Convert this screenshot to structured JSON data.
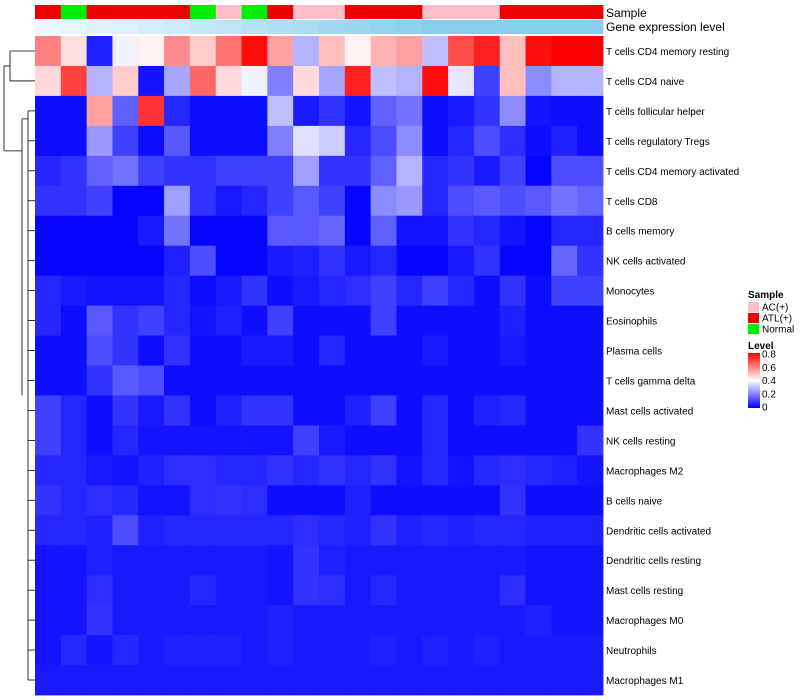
{
  "chart_data": {
    "type": "heatmap",
    "annotations": {
      "sample_label": "Sample",
      "gene_label": "Gene expression level",
      "sample_groups": [
        "ATL(+)",
        "Normal",
        "ATL(+)",
        "ATL(+)",
        "ATL(+)",
        "ATL(+)",
        "Normal",
        "AC(+)",
        "Normal",
        "ATL(+)",
        "AC(+)",
        "AC(+)",
        "ATL(+)",
        "ATL(+)",
        "ATL(+)",
        "AC(+)",
        "AC(+)",
        "AC(+)",
        "ATL(+)",
        "ATL(+)",
        "ATL(+)",
        "ATL(+)"
      ],
      "gene_levels": [
        0.02,
        0.05,
        0.08,
        0.12,
        0.16,
        0.2,
        0.24,
        0.28,
        0.32,
        0.36,
        0.4,
        0.44,
        0.48,
        0.52,
        0.56,
        0.6,
        0.64,
        0.68,
        0.72,
        0.76,
        0.8,
        0.85
      ]
    },
    "rows": [
      "T cells CD4 memory resting",
      "T cells CD4 naive",
      "T cells follicular helper",
      "T cells regulatory  Tregs",
      "T cells CD4 memory activated",
      "T cells CD8",
      "B cells memory",
      "NK cells activated",
      "Monocytes",
      "Eosinophils",
      "Plasma cells",
      "T cells gamma delta",
      "Mast cells activated",
      "NK cells resting",
      "Macrophages M2",
      "B cells naive",
      "Dendritic cells activated",
      "Dendritic cells resting",
      "Mast cells resting",
      "Macrophages M0",
      "Neutrophils",
      "Macrophages M1"
    ],
    "values": [
      [
        0.6,
        0.45,
        0.05,
        0.38,
        0.42,
        0.58,
        0.48,
        0.62,
        0.78,
        0.55,
        0.28,
        0.5,
        0.42,
        0.52,
        0.55,
        0.3,
        0.68,
        0.75,
        0.5,
        0.78,
        0.8,
        0.8
      ],
      [
        0.46,
        0.7,
        0.28,
        0.48,
        0.03,
        0.26,
        0.64,
        0.46,
        0.38,
        0.2,
        0.46,
        0.26,
        0.75,
        0.3,
        0.28,
        0.78,
        0.36,
        0.1,
        0.5,
        0.22,
        0.28,
        0.28
      ],
      [
        0.02,
        0.02,
        0.55,
        0.15,
        0.72,
        0.06,
        0.02,
        0.02,
        0.02,
        0.3,
        0.04,
        0.08,
        0.03,
        0.15,
        0.18,
        0.02,
        0.04,
        0.08,
        0.22,
        0.03,
        0.02,
        0.02
      ],
      [
        0.02,
        0.02,
        0.24,
        0.1,
        0.02,
        0.14,
        0.02,
        0.02,
        0.02,
        0.2,
        0.35,
        0.32,
        0.06,
        0.12,
        0.22,
        0.02,
        0.06,
        0.12,
        0.07,
        0.02,
        0.05,
        0.02
      ],
      [
        0.06,
        0.08,
        0.15,
        0.18,
        0.1,
        0.08,
        0.08,
        0.1,
        0.1,
        0.1,
        0.25,
        0.08,
        0.08,
        0.15,
        0.28,
        0.06,
        0.08,
        0.04,
        0.1,
        0.01,
        0.12,
        0.12
      ],
      [
        0.08,
        0.08,
        0.1,
        0.01,
        0.01,
        0.25,
        0.08,
        0.04,
        0.06,
        0.1,
        0.14,
        0.1,
        0.01,
        0.22,
        0.24,
        0.06,
        0.12,
        0.14,
        0.12,
        0.14,
        0.18,
        0.16
      ],
      [
        0.01,
        0.01,
        0.01,
        0.01,
        0.04,
        0.18,
        0.01,
        0.01,
        0.01,
        0.14,
        0.14,
        0.16,
        0.01,
        0.15,
        0.03,
        0.03,
        0.08,
        0.06,
        0.03,
        0.01,
        0.06,
        0.06
      ],
      [
        0.01,
        0.01,
        0.01,
        0.01,
        0.01,
        0.05,
        0.12,
        0.01,
        0.01,
        0.04,
        0.05,
        0.08,
        0.04,
        0.06,
        0.01,
        0.01,
        0.04,
        0.08,
        0.01,
        0.01,
        0.16,
        0.08
      ],
      [
        0.06,
        0.04,
        0.03,
        0.03,
        0.03,
        0.06,
        0.02,
        0.04,
        0.08,
        0.02,
        0.04,
        0.06,
        0.07,
        0.1,
        0.06,
        0.1,
        0.06,
        0.02,
        0.08,
        0.02,
        0.1,
        0.1
      ],
      [
        0.06,
        0.02,
        0.14,
        0.08,
        0.1,
        0.06,
        0.03,
        0.05,
        0.02,
        0.1,
        0.02,
        0.02,
        0.02,
        0.1,
        0.02,
        0.02,
        0.02,
        0.02,
        0.05,
        0.02,
        0.02,
        0.02
      ],
      [
        0.02,
        0.02,
        0.12,
        0.08,
        0.02,
        0.08,
        0.02,
        0.02,
        0.04,
        0.04,
        0.02,
        0.06,
        0.02,
        0.02,
        0.02,
        0.04,
        0.02,
        0.02,
        0.04,
        0.02,
        0.02,
        0.02
      ],
      [
        0.02,
        0.02,
        0.08,
        0.14,
        0.12,
        0.02,
        0.02,
        0.02,
        0.02,
        0.02,
        0.02,
        0.02,
        0.02,
        0.02,
        0.02,
        0.02,
        0.02,
        0.02,
        0.02,
        0.02,
        0.02,
        0.02
      ],
      [
        0.1,
        0.06,
        0.02,
        0.08,
        0.04,
        0.08,
        0.02,
        0.05,
        0.08,
        0.08,
        0.02,
        0.02,
        0.05,
        0.1,
        0.02,
        0.06,
        0.02,
        0.05,
        0.06,
        0.02,
        0.02,
        0.02
      ],
      [
        0.1,
        0.06,
        0.02,
        0.06,
        0.03,
        0.03,
        0.03,
        0.03,
        0.03,
        0.03,
        0.1,
        0.04,
        0.02,
        0.02,
        0.02,
        0.06,
        0.02,
        0.02,
        0.02,
        0.02,
        0.02,
        0.08
      ],
      [
        0.06,
        0.06,
        0.04,
        0.03,
        0.05,
        0.07,
        0.07,
        0.06,
        0.06,
        0.08,
        0.06,
        0.08,
        0.06,
        0.08,
        0.03,
        0.06,
        0.03,
        0.06,
        0.07,
        0.06,
        0.05,
        0.03
      ],
      [
        0.08,
        0.06,
        0.07,
        0.06,
        0.03,
        0.03,
        0.07,
        0.08,
        0.07,
        0.02,
        0.02,
        0.02,
        0.05,
        0.02,
        0.02,
        0.02,
        0.02,
        0.02,
        0.08,
        0.02,
        0.02,
        0.02
      ],
      [
        0.06,
        0.06,
        0.05,
        0.12,
        0.05,
        0.06,
        0.06,
        0.06,
        0.06,
        0.06,
        0.07,
        0.06,
        0.05,
        0.08,
        0.05,
        0.06,
        0.05,
        0.06,
        0.06,
        0.05,
        0.05,
        0.05
      ],
      [
        0.03,
        0.03,
        0.05,
        0.04,
        0.04,
        0.04,
        0.04,
        0.04,
        0.04,
        0.03,
        0.08,
        0.05,
        0.04,
        0.04,
        0.04,
        0.04,
        0.04,
        0.04,
        0.04,
        0.03,
        0.03,
        0.03
      ],
      [
        0.03,
        0.03,
        0.07,
        0.04,
        0.04,
        0.04,
        0.06,
        0.04,
        0.04,
        0.03,
        0.08,
        0.07,
        0.04,
        0.06,
        0.04,
        0.04,
        0.04,
        0.04,
        0.07,
        0.03,
        0.03,
        0.03
      ],
      [
        0.03,
        0.03,
        0.08,
        0.04,
        0.04,
        0.04,
        0.04,
        0.04,
        0.04,
        0.05,
        0.04,
        0.04,
        0.04,
        0.04,
        0.04,
        0.04,
        0.04,
        0.04,
        0.04,
        0.05,
        0.03,
        0.03
      ],
      [
        0.03,
        0.06,
        0.03,
        0.06,
        0.04,
        0.05,
        0.05,
        0.05,
        0.04,
        0.05,
        0.04,
        0.04,
        0.04,
        0.05,
        0.04,
        0.05,
        0.04,
        0.05,
        0.04,
        0.04,
        0.04,
        0.04
      ],
      [
        0.04,
        0.04,
        0.04,
        0.04,
        0.04,
        0.04,
        0.04,
        0.04,
        0.04,
        0.04,
        0.04,
        0.04,
        0.04,
        0.04,
        0.04,
        0.04,
        0.04,
        0.04,
        0.04,
        0.04,
        0.04,
        0.04
      ]
    ],
    "legend": {
      "sample_title": "Sample",
      "sample_entries": [
        {
          "label": "AC(+)",
          "color": "#ffc0cb"
        },
        {
          "label": "ATL(+)",
          "color": "#ee0000"
        },
        {
          "label": "Normal",
          "color": "#00ee00"
        }
      ],
      "level_title": "Level",
      "level_ticks": [
        "0.8",
        "0.6",
        "0.4",
        "0.2",
        "0"
      ],
      "level_range": [
        0,
        0.8
      ]
    },
    "colors": {
      "low": "#0000ff",
      "mid": "#ffffff",
      "high": "#ff0000",
      "gene_low": "#f0f8ff",
      "gene_high": "#87ceeb",
      "dendrogram": "#000000"
    }
  }
}
